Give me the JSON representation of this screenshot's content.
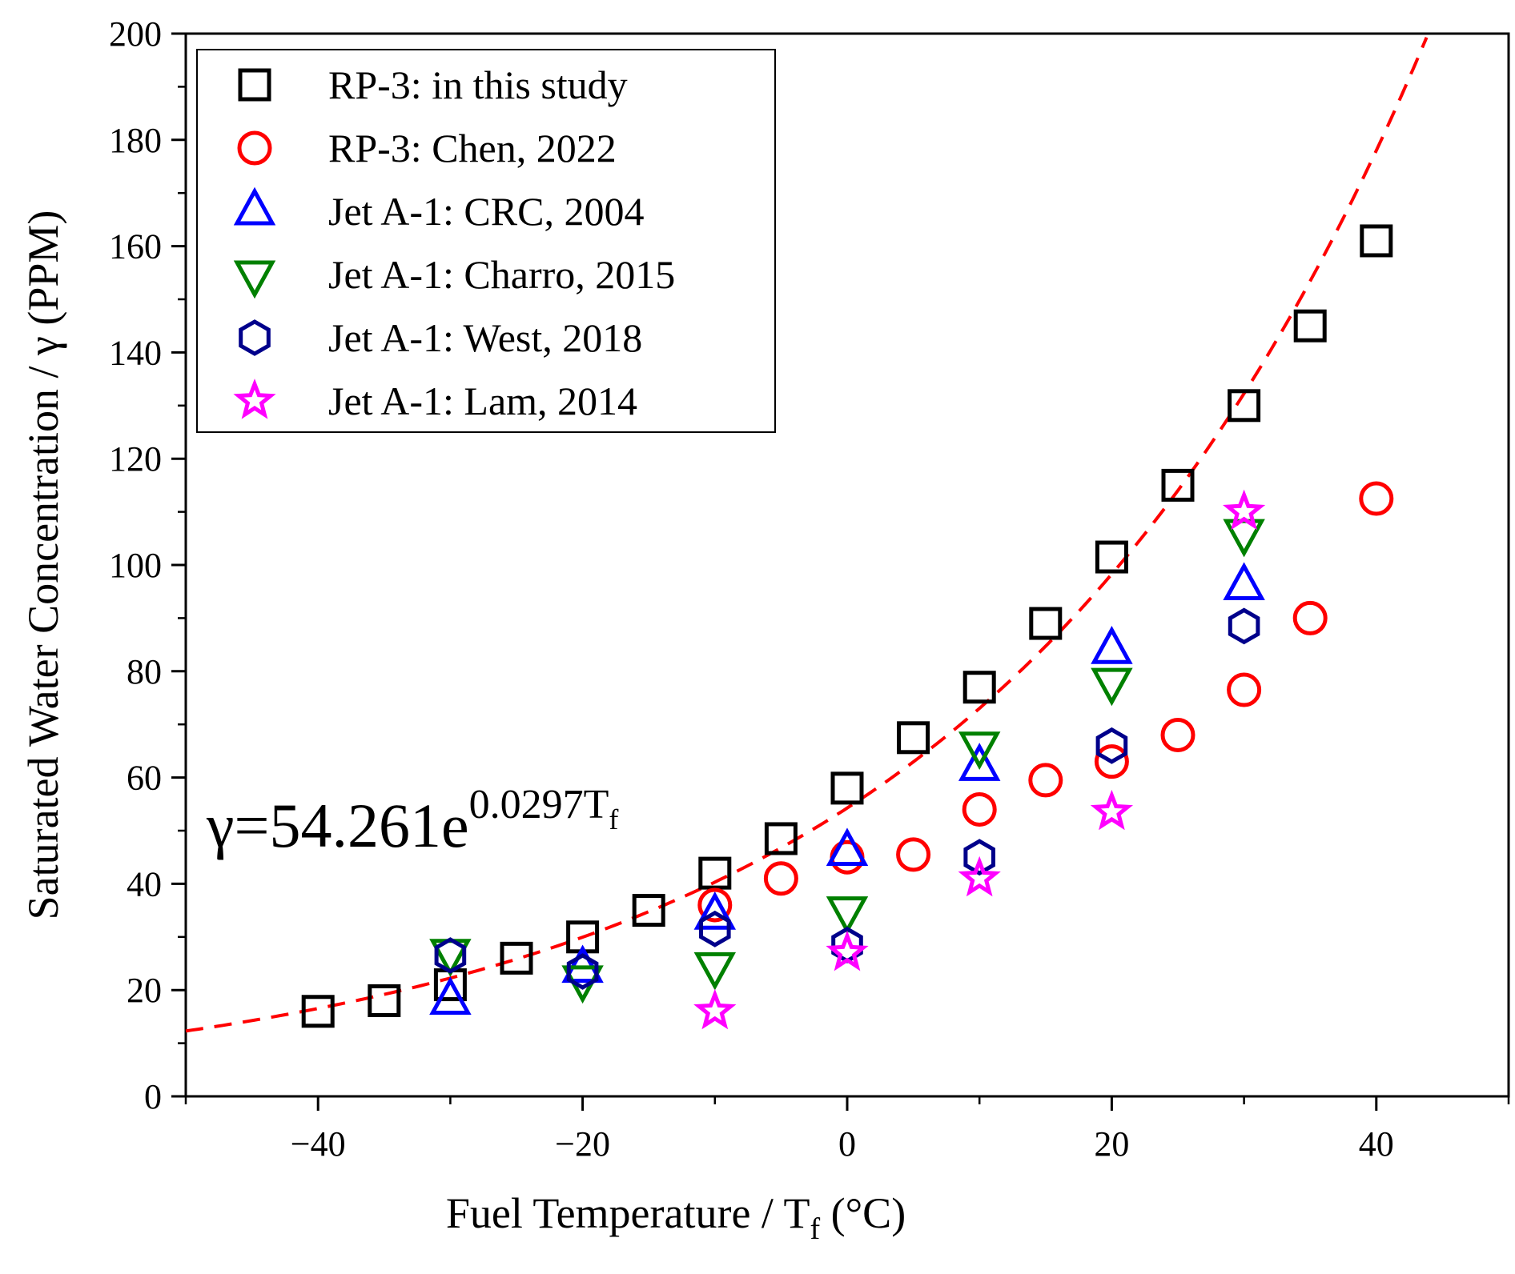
{
  "chart_data": {
    "type": "scatter",
    "title": "",
    "xlabel": "Fuel Temperature / T",
    "xlabel_sub": "f",
    "xlabel_unit": " (°C)",
    "ylabel": "Saturated Water Concentration / γ (PPM)",
    "xlim": [
      -50,
      50
    ],
    "ylim": [
      0,
      200
    ],
    "x_ticks": [
      -40,
      -20,
      0,
      20,
      40
    ],
    "x_tick_labels": [
      "−40",
      "−20",
      "0",
      "20",
      "40"
    ],
    "y_ticks": [
      0,
      20,
      40,
      60,
      80,
      100,
      120,
      140,
      160,
      180,
      200
    ],
    "y_tick_labels": [
      "0",
      "20",
      "40",
      "60",
      "80",
      "100",
      "120",
      "140",
      "160",
      "180",
      "200"
    ],
    "legend_position": "top-left",
    "grid": false,
    "series": [
      {
        "name": "RP-3: in this study",
        "marker": "square",
        "color": "#000000",
        "points": [
          [
            -40,
            16
          ],
          [
            -35,
            18
          ],
          [
            -30,
            21
          ],
          [
            -25,
            26
          ],
          [
            -20,
            30
          ],
          [
            -15,
            35
          ],
          [
            -10,
            42
          ],
          [
            -5,
            48.5
          ],
          [
            0,
            58
          ],
          [
            5,
            67.5
          ],
          [
            10,
            77
          ],
          [
            15,
            89
          ],
          [
            20,
            101.5
          ],
          [
            25,
            115
          ],
          [
            30,
            130
          ],
          [
            35,
            145
          ],
          [
            40,
            161
          ]
        ]
      },
      {
        "name": "RP-3: Chen, 2022",
        "marker": "circle",
        "color": "#ff0000",
        "points": [
          [
            -10,
            36
          ],
          [
            -5,
            41
          ],
          [
            0,
            45
          ],
          [
            5,
            45.5
          ],
          [
            10,
            54
          ],
          [
            15,
            59.5
          ],
          [
            20,
            63
          ],
          [
            25,
            68
          ],
          [
            30,
            76.5
          ],
          [
            35,
            90
          ],
          [
            40,
            112.5
          ]
        ]
      },
      {
        "name": "Jet A-1: CRC, 2004",
        "marker": "triangle-up",
        "color": "#0000ff",
        "points": [
          [
            -30,
            18
          ],
          [
            -20,
            24
          ],
          [
            -10,
            34
          ],
          [
            0,
            46
          ],
          [
            10,
            62
          ],
          [
            20,
            84
          ],
          [
            30,
            96
          ]
        ]
      },
      {
        "name": "Jet A-1: Charro, 2015",
        "marker": "triangle-down",
        "color": "#008000",
        "points": [
          [
            -30,
            27
          ],
          [
            -20,
            22
          ],
          [
            -10,
            24.5
          ],
          [
            0,
            35
          ],
          [
            10,
            66
          ],
          [
            20,
            78
          ],
          [
            30,
            106
          ]
        ]
      },
      {
        "name": "Jet A-1: West, 2018",
        "marker": "hexagon",
        "color": "#00008b",
        "points": [
          [
            -30,
            26.5
          ],
          [
            -20,
            23.5
          ],
          [
            -10,
            31.5
          ],
          [
            0,
            28.5
          ],
          [
            10,
            45
          ],
          [
            20,
            66
          ],
          [
            30,
            88.5
          ]
        ]
      },
      {
        "name": "Jet A-1: Lam, 2014",
        "marker": "star",
        "color": "#ff00ff",
        "points": [
          [
            -10,
            16
          ],
          [
            0,
            27
          ],
          [
            10,
            41
          ],
          [
            20,
            53.5
          ],
          [
            30,
            110
          ]
        ]
      }
    ],
    "fit": {
      "name": "exponential fit",
      "style": "dashed",
      "color": "#ff0000",
      "a": 54.261,
      "b": 0.0297,
      "x_range": [
        -50,
        43.8
      ]
    },
    "equation": {
      "lhs": "γ=54.261e",
      "exponent": "0.0297T",
      "exponent_sub": "f"
    }
  }
}
